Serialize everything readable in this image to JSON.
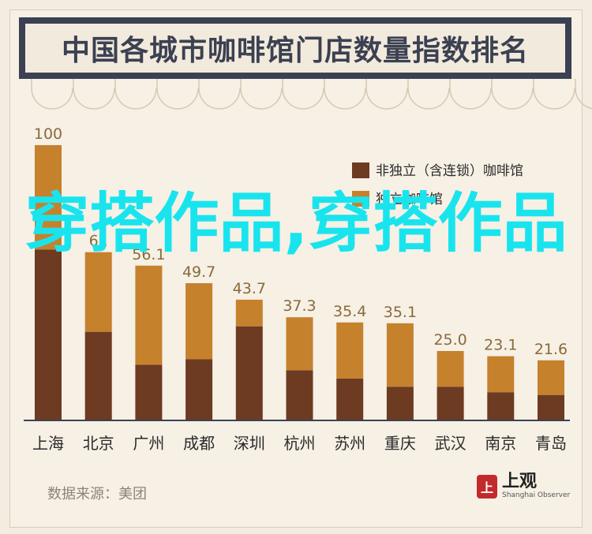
{
  "title": "中国各城市咖啡馆门店数量指数排名",
  "source_text": "数据来源：美团",
  "logo": {
    "cn": "上观",
    "en": "Shanghai Observer",
    "mark": "上"
  },
  "watermark": "穿搭作品,穿搭作品",
  "colors": {
    "dark": "#6d3a22",
    "light": "#c6812d",
    "band": "#3b4152",
    "bg": "#f6f0e5"
  },
  "chart_data": {
    "type": "bar",
    "stacked": true,
    "categories": [
      "上海",
      "北京",
      "广州",
      "成都",
      "深圳",
      "杭州",
      "苏州",
      "重庆",
      "武汉",
      "南京",
      "青岛"
    ],
    "totals": [
      100,
      61,
      56.1,
      49.7,
      43.7,
      37.3,
      35.4,
      35.1,
      25.0,
      23.1,
      21.6
    ],
    "total_labels": [
      "100",
      "61",
      "56.1",
      "49.7",
      "43.7",
      "37.3",
      "35.4",
      "35.1",
      "25.0",
      "23.1",
      "21.6"
    ],
    "series": [
      {
        "name": "非独立（含连锁）咖啡馆",
        "color": "#6d3a22",
        "values": [
          62,
          32,
          20,
          22,
          34,
          18,
          15,
          12,
          12,
          10,
          9
        ]
      },
      {
        "name": "独立咖啡馆",
        "color": "#c6812d",
        "values": [
          38,
          29,
          36.1,
          27.7,
          9.7,
          19.3,
          20.4,
          23.1,
          13,
          13.1,
          12.6
        ]
      }
    ],
    "ylim": [
      0,
      100
    ],
    "legend_position": "top-right"
  }
}
